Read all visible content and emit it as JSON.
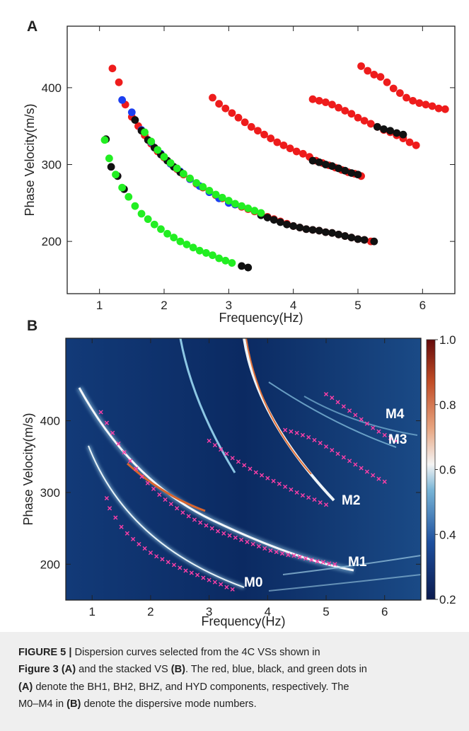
{
  "chart_data": [
    {
      "type": "scatter",
      "panel_label": "A",
      "x_label": "Frequency(Hz)",
      "y_label": "Phase Velocity(m/s)",
      "xlim": [
        0.5,
        6.5
      ],
      "ylim": [
        132,
        480
      ],
      "xticks": [
        1,
        2,
        3,
        4,
        5,
        6
      ],
      "yticks": [
        200,
        300,
        400
      ],
      "series": [
        {
          "color": "#ee1c1c",
          "x": [
            1.2,
            1.3,
            1.4,
            1.5,
            1.6,
            1.7,
            1.8,
            1.9,
            2.0,
            2.1,
            2.2,
            2.3,
            2.4,
            2.5,
            2.6,
            2.7,
            2.8,
            2.9,
            3.0,
            3.1,
            3.2,
            3.3,
            3.4,
            3.5,
            3.6,
            3.7,
            3.8,
            3.9,
            4.0,
            4.1,
            4.2,
            4.3,
            4.4,
            4.5,
            4.6,
            4.7,
            4.8,
            4.9,
            5.0,
            5.1,
            5.2,
            2.75,
            2.85,
            2.95,
            3.05,
            3.15,
            3.25,
            3.35,
            3.45,
            3.55,
            3.65,
            3.75,
            3.85,
            3.95,
            4.05,
            4.15,
            4.25,
            4.35,
            4.45,
            4.55,
            4.65,
            4.75,
            4.85,
            4.95,
            5.05,
            4.3,
            4.4,
            4.5,
            4.6,
            4.7,
            4.8,
            4.9,
            5.0,
            5.1,
            5.2,
            5.3,
            5.4,
            5.5,
            5.6,
            5.7,
            5.8,
            5.9,
            5.05,
            5.15,
            5.25,
            5.35,
            5.45,
            5.55,
            5.65,
            5.75,
            5.85,
            5.95,
            6.05,
            6.15,
            6.25,
            6.35
          ],
          "values": [
            425,
            407,
            378,
            362,
            350,
            338,
            327,
            317,
            309,
            301,
            294,
            287,
            281,
            275,
            270,
            265,
            260,
            256,
            252,
            248,
            245,
            242,
            239,
            236,
            232,
            229,
            226,
            223,
            220,
            218,
            216,
            215,
            214,
            212,
            211,
            209,
            207,
            205,
            203,
            202,
            200,
            387,
            379,
            373,
            367,
            361,
            355,
            349,
            344,
            339,
            334,
            329,
            325,
            321,
            317,
            314,
            310,
            305,
            302,
            299,
            296,
            293,
            290,
            288,
            285,
            385,
            383,
            381,
            378,
            374,
            370,
            366,
            361,
            357,
            353,
            349,
            345,
            342,
            338,
            334,
            329,
            325,
            428,
            422,
            417,
            414,
            407,
            399,
            393,
            387,
            383,
            380,
            378,
            376,
            373,
            372
          ]
        },
        {
          "color": "#1c3ff0",
          "x": [
            1.35,
            1.5,
            1.65,
            1.8,
            1.95,
            2.1,
            2.25,
            2.4,
            2.55,
            2.7,
            2.85,
            3.0,
            3.1
          ],
          "values": [
            384,
            368,
            345,
            329,
            314,
            301,
            291,
            281,
            272,
            264,
            256,
            250,
            248
          ]
        },
        {
          "color": "#111111",
          "x": [
            1.1,
            1.18,
            1.28,
            1.38,
            3.2,
            3.3,
            1.55,
            1.65,
            1.75,
            1.85,
            1.95,
            2.05,
            2.15,
            2.25,
            3.5,
            3.6,
            3.7,
            3.8,
            3.9,
            4.0,
            4.1,
            4.2,
            4.3,
            4.4,
            4.5,
            4.6,
            4.7,
            4.8,
            4.9,
            5.0,
            5.1,
            5.25,
            4.3,
            4.4,
            4.5,
            4.6,
            4.7,
            4.8,
            4.9,
            5.0,
            5.3,
            5.4,
            5.5,
            5.6,
            5.7
          ],
          "values": [
            333,
            297,
            285,
            268,
            168,
            166,
            358,
            344,
            332,
            322,
            313,
            305,
            297,
            290,
            234,
            231,
            228,
            225,
            222,
            220,
            218,
            216,
            215,
            214,
            212,
            211,
            209,
            207,
            205,
            203,
            202,
            200,
            305,
            303,
            300,
            298,
            295,
            292,
            289,
            287,
            349,
            346,
            344,
            341,
            339
          ]
        },
        {
          "color": "#22ee22",
          "x": [
            1.08,
            1.15,
            1.25,
            1.35,
            1.45,
            1.55,
            1.65,
            1.75,
            1.85,
            1.95,
            2.05,
            2.15,
            2.25,
            2.35,
            2.45,
            2.55,
            2.65,
            2.75,
            2.85,
            2.95,
            3.05,
            1.7,
            1.8,
            1.9,
            2.0,
            2.1,
            2.2,
            2.3,
            2.4,
            2.5,
            2.6,
            2.7,
            2.8,
            2.9,
            3.0,
            3.1,
            3.2,
            3.3,
            3.4,
            3.5
          ],
          "values": [
            332,
            308,
            287,
            270,
            258,
            246,
            236,
            229,
            222,
            216,
            210,
            205,
            200,
            196,
            192,
            188,
            185,
            182,
            178,
            175,
            172,
            342,
            330,
            319,
            310,
            302,
            295,
            288,
            282,
            276,
            271,
            266,
            261,
            257,
            253,
            249,
            246,
            243,
            240,
            237
          ]
        }
      ]
    },
    {
      "type": "heatmap",
      "panel_label": "B",
      "x_label": "Frequency(Hz)",
      "y_label": "Phase Velocity(m/s)",
      "xlim": [
        0.55,
        6.62
      ],
      "ylim": [
        150,
        515
      ],
      "xticks": [
        1,
        2,
        3,
        4,
        5,
        6
      ],
      "yticks": [
        200,
        300,
        400
      ],
      "clim": [
        0.2,
        1.0
      ],
      "cticks": [
        0.2,
        0.4,
        0.6,
        0.8,
        {
          "value": 1,
          "label": "1.0"
        }
      ],
      "annotations": [
        "M0",
        "M1",
        "M2",
        "M3",
        "M4"
      ],
      "series": [
        {
          "color": "#ff3fa8",
          "marker": "x",
          "x": [
            1.15,
            1.25,
            1.35,
            1.45,
            1.55,
            1.65,
            1.75,
            1.85,
            1.95,
            2.05,
            2.15,
            2.25,
            2.35,
            2.45,
            2.55,
            2.65,
            2.75,
            2.85,
            2.95,
            3.05,
            3.15,
            3.25,
            3.35,
            3.45,
            3.55,
            3.65,
            3.75,
            3.85,
            3.95,
            4.05,
            4.15,
            4.25,
            4.35,
            4.45,
            4.55,
            4.65,
            4.75,
            4.85,
            4.95,
            5.05,
            5.15,
            1.25,
            1.3,
            1.4,
            1.5,
            1.6,
            1.7,
            1.8,
            1.9,
            2.0,
            2.1,
            2.2,
            2.3,
            2.4,
            2.5,
            2.6,
            2.7,
            2.8,
            2.9,
            3.0,
            3.1,
            3.2,
            3.3,
            3.4,
            3.0,
            3.1,
            3.2,
            3.3,
            3.4,
            3.5,
            3.6,
            3.7,
            3.8,
            3.9,
            4.0,
            4.1,
            4.2,
            4.3,
            4.4,
            4.5,
            4.6,
            4.7,
            4.8,
            4.9,
            5.0,
            4.3,
            4.4,
            4.5,
            4.6,
            4.7,
            4.8,
            4.9,
            5.0,
            5.1,
            5.2,
            5.3,
            5.4,
            5.5,
            5.6,
            5.7,
            5.8,
            5.9,
            6.0,
            5.0,
            5.1,
            5.2,
            5.3,
            5.4,
            5.5,
            5.6,
            5.7,
            5.8,
            5.9,
            6.0,
            6.1,
            6.2
          ],
          "values": [
            412,
            397,
            383,
            368,
            356,
            344,
            333,
            322,
            313,
            305,
            297,
            290,
            284,
            278,
            272,
            267,
            262,
            258,
            254,
            250,
            246,
            243,
            240,
            237,
            234,
            231,
            228,
            225,
            222,
            219,
            217,
            215,
            213,
            212,
            210,
            208,
            206,
            204,
            203,
            201,
            200,
            292,
            278,
            265,
            252,
            243,
            235,
            228,
            222,
            216,
            211,
            207,
            203,
            199,
            195,
            191,
            188,
            185,
            181,
            178,
            175,
            172,
            168,
            165,
            372,
            366,
            360,
            354,
            348,
            343,
            338,
            333,
            328,
            324,
            320,
            316,
            312,
            308,
            304,
            300,
            296,
            293,
            290,
            286,
            283,
            387,
            385,
            383,
            380,
            377,
            373,
            369,
            364,
            359,
            354,
            349,
            344,
            339,
            334,
            329,
            324,
            319,
            315,
            437,
            432,
            426,
            420,
            414,
            408,
            402,
            396,
            390,
            385,
            380,
            376,
            372
          ]
        }
      ]
    }
  ],
  "caption": {
    "parts": [
      "FIGURE 5 |",
      " Dispersion curves selected from the 4C VSs shown in",
      "Figure 3 (A)",
      " and the stacked VS ",
      "(B)",
      ". The red, blue, black, and green dots in",
      "(A)",
      " denote the BH1, BH2, BHZ, and HYD components, respectively. The",
      "M0–M4 in ",
      "(B)",
      " denote the dispersive mode numbers."
    ]
  }
}
